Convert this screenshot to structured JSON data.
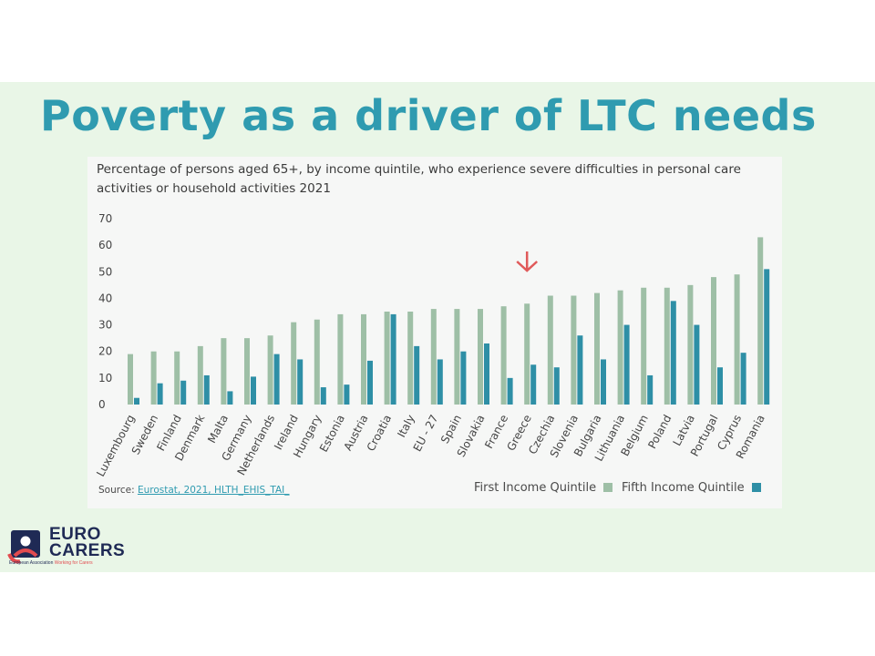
{
  "slide": {
    "title": "Poverty as a driver of LTC needs",
    "bg_color": "#e9f6e7",
    "title_color": "#2f9bb0"
  },
  "source": {
    "prefix": "Source: ",
    "link_text": "Eurostat, 2021, HLTH_EHIS_TAI_"
  },
  "logo": {
    "line1": "EURO",
    "line2": "CARERS",
    "tagline": "European Association",
    "tagline_accent": "Working for Carers"
  },
  "chart_data": {
    "type": "bar",
    "title": "Percentage of persons aged 65+, by income quintile, who experience severe difficulties in personal care activities or household activities 2021",
    "xlabel": "",
    "ylabel": "",
    "ylim": [
      0,
      70
    ],
    "yticks": [
      0,
      10,
      20,
      30,
      40,
      50,
      60,
      70
    ],
    "grid": false,
    "legend_position": "bottom-right",
    "categories": [
      "Luxembourg",
      "Sweden",
      "Finland",
      "Denmark",
      "Malta",
      "Germany",
      "Netherlands",
      "Ireland",
      "Hungary",
      "Estonia",
      "Austria",
      "Croatia",
      "Italy",
      "EU - 27",
      "Spain",
      "Slovakia",
      "France",
      "Greece",
      "Czechia",
      "Slovenia",
      "Bulgaria",
      "Lithuania",
      "Belgium",
      "Poland",
      "Latvia",
      "Portugal",
      "Cyprus",
      "Romania"
    ],
    "series": [
      {
        "name": "First Income Quintile",
        "color": "#9ebfa6",
        "values": [
          19,
          20,
          20,
          22,
          25,
          25,
          26,
          31,
          32,
          34,
          34,
          35,
          35,
          36,
          36,
          36,
          37,
          38,
          41,
          41,
          42,
          43,
          44,
          44,
          45,
          48,
          49,
          63
        ]
      },
      {
        "name": "Fifth Income Quintile",
        "color": "#2e8fa6",
        "values": [
          2.5,
          8,
          9,
          11,
          5,
          10.5,
          19,
          17,
          6.5,
          7.5,
          16.5,
          34,
          22,
          17,
          20,
          23,
          10,
          15,
          14,
          26,
          17,
          30,
          11,
          39,
          30,
          14,
          19.5,
          51
        ]
      }
    ],
    "annotation": {
      "type": "arrow",
      "category": "Greece",
      "color": "#e05a5a"
    }
  }
}
